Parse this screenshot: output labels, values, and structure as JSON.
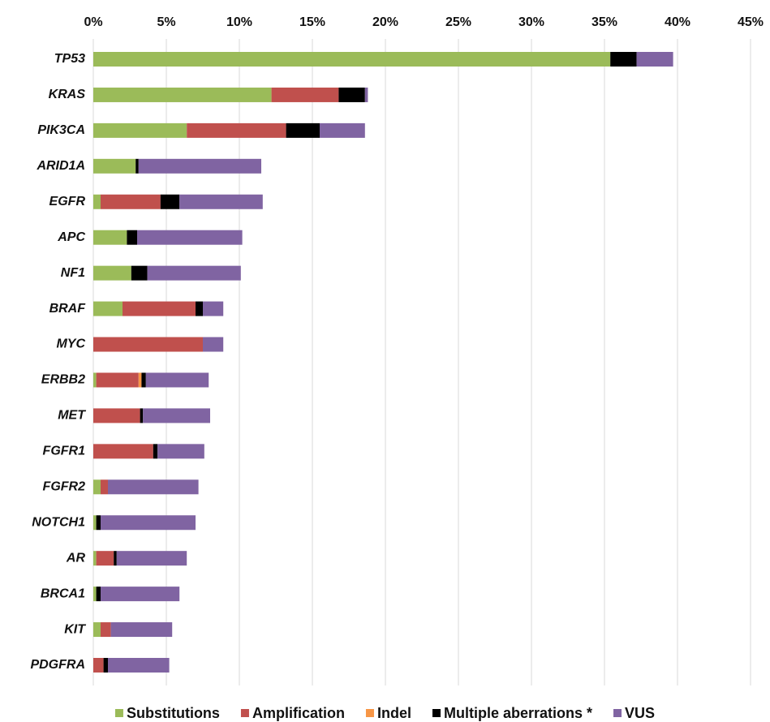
{
  "chart_data": {
    "type": "stacked-barh",
    "categories": [
      "TP53",
      "KRAS",
      "PIK3CA",
      "ARID1A",
      "EGFR",
      "APC",
      "NF1",
      "BRAF",
      "MYC",
      "ERBB2",
      "MET",
      "FGFR1",
      "FGFR2",
      "NOTCH1",
      "AR",
      "BRCA1",
      "KIT",
      "PDGFRA"
    ],
    "series": [
      {
        "name": "Substitutions",
        "color": "#9bbb59",
        "values": [
          35.4,
          12.2,
          6.4,
          2.9,
          0.5,
          2.3,
          2.6,
          2.0,
          0,
          0.2,
          0,
          0,
          0.5,
          0.2,
          0.2,
          0.2,
          0.5,
          0
        ]
      },
      {
        "name": "Amplification",
        "color": "#c0504d",
        "values": [
          0,
          4.6,
          6.8,
          0,
          4.1,
          0,
          0,
          5.0,
          7.5,
          2.9,
          3.2,
          4.1,
          0.5,
          0,
          1.2,
          0,
          0.7,
          0.7
        ]
      },
      {
        "name": "Indel",
        "color": "#f79646",
        "values": [
          0,
          0,
          0,
          0,
          0,
          0,
          0,
          0,
          0,
          0.2,
          0,
          0,
          0,
          0,
          0,
          0,
          0,
          0
        ]
      },
      {
        "name": "Multiple aberrations *",
        "color": "#000000",
        "values": [
          1.8,
          1.8,
          2.3,
          0.2,
          1.3,
          0.7,
          1.1,
          0.5,
          0,
          0.3,
          0.2,
          0.3,
          0,
          0.3,
          0.2,
          0.3,
          0,
          0.3
        ]
      },
      {
        "name": "VUS",
        "color": "#8064a2",
        "values": [
          2.5,
          0.2,
          3.1,
          8.4,
          5.7,
          7.2,
          6.4,
          1.4,
          1.4,
          4.3,
          4.6,
          3.2,
          6.2,
          6.5,
          4.8,
          5.4,
          4.2,
          4.2
        ]
      }
    ],
    "xlim": [
      0,
      45
    ],
    "xticks": [
      {
        "value": 0,
        "label": "0%"
      },
      {
        "value": 5,
        "label": "5%"
      },
      {
        "value": 10,
        "label": "10%"
      },
      {
        "value": 15,
        "label": "15%"
      },
      {
        "value": 20,
        "label": "20%"
      },
      {
        "value": 25,
        "label": "25%"
      },
      {
        "value": 30,
        "label": "30%"
      },
      {
        "value": 35,
        "label": "35%"
      },
      {
        "value": 40,
        "label": "40%"
      },
      {
        "value": 45,
        "label": "45%"
      }
    ],
    "grid": true,
    "legend": "bottom"
  }
}
